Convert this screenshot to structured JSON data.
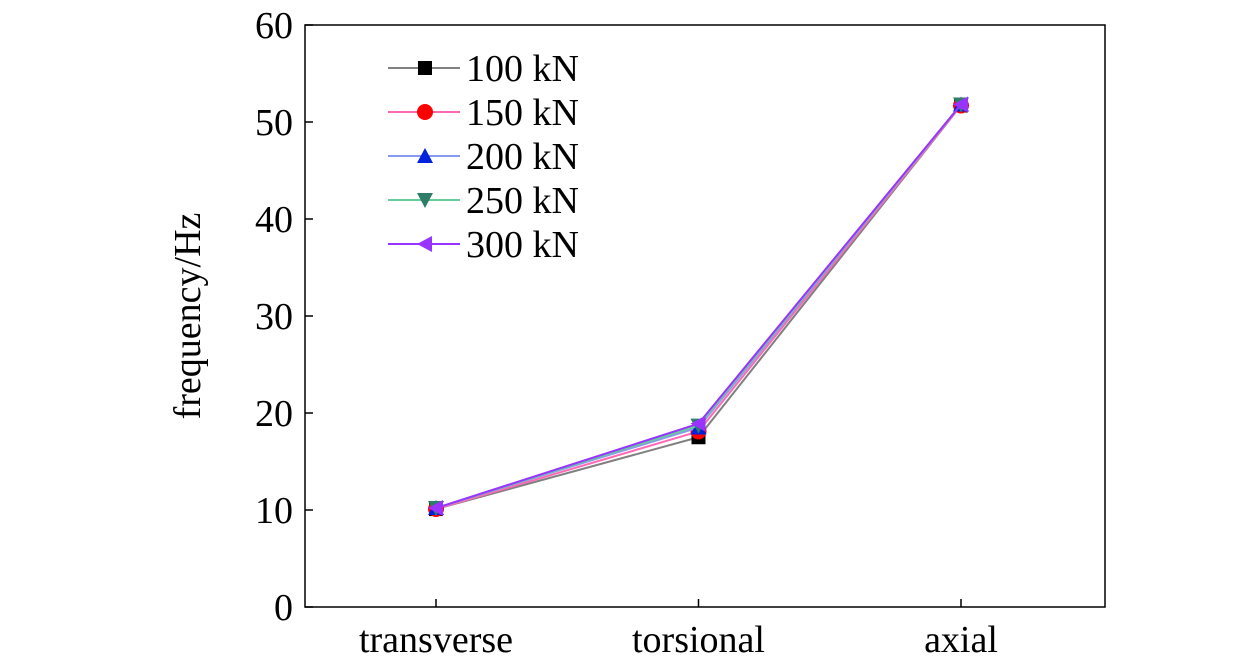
{
  "chart_data": {
    "type": "line",
    "title": "",
    "xlabel": "",
    "ylabel": "frequency/Hz",
    "categories": [
      "transverse",
      "torsional",
      "axial"
    ],
    "ylim": [
      0,
      60
    ],
    "yticks": [
      0,
      10,
      20,
      30,
      40,
      50,
      60
    ],
    "grid": false,
    "legend_position": "top-left",
    "series": [
      {
        "name": "100 kN",
        "values": [
          10.1,
          17.5,
          51.7
        ],
        "color": "#000000",
        "line_color": "#808080",
        "marker": "square"
      },
      {
        "name": "150 kN",
        "values": [
          10.1,
          18.1,
          51.7
        ],
        "color": "#ff0000",
        "line_color": "#ff69b4",
        "marker": "circle"
      },
      {
        "name": "200 kN",
        "values": [
          10.2,
          18.5,
          51.8
        ],
        "color": "#0022dd",
        "line_color": "#8899ee",
        "marker": "triangle-up"
      },
      {
        "name": "250 kN",
        "values": [
          10.2,
          18.7,
          51.8
        ],
        "color": "#2e7d66",
        "line_color": "#66cc99",
        "marker": "triangle-down"
      },
      {
        "name": "300 kN",
        "values": [
          10.2,
          18.9,
          51.8
        ],
        "color": "#9933ff",
        "line_color": "#9933ff",
        "marker": "triangle-left"
      }
    ]
  }
}
